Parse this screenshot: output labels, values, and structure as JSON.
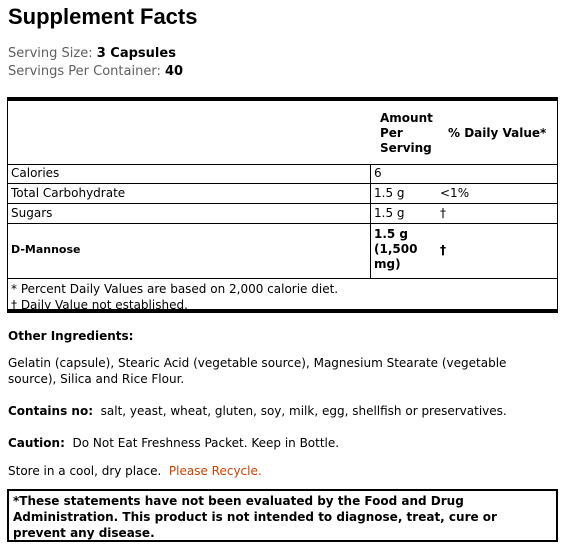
{
  "title": "Supplement Facts",
  "serving": {
    "size_label": "Serving Size:",
    "size_value": "3 Capsules",
    "per_container_label": "Servings Per Container:",
    "per_container_value": "40"
  },
  "table": {
    "amount_header": "Amount Per Serving",
    "dv_header": "% Daily Value*",
    "rows": [
      {
        "name": "Calories",
        "amount": "6",
        "dv": ""
      },
      {
        "name": "Total Carbohydrate",
        "amount": "1.5 g",
        "dv": "<1%"
      },
      {
        "name": "Sugars",
        "amount": "1.5 g",
        "dv": "†"
      },
      {
        "name": "D-Mannose",
        "amount": "1.5 g (1,500 mg)",
        "dv": "†"
      }
    ],
    "footnote_1": "* Percent Daily Values are based on 2,000 calorie diet.",
    "footnote_2": "† Daily Value not established."
  },
  "other_ingredients": {
    "label": "Other Ingredients:",
    "text": "Gelatin (capsule), Stearic Acid (vegetable source), Magnesium Stearate (vegetable source), Silica and Rice Flour."
  },
  "contains_no": {
    "label": "Contains no:",
    "text": "salt, yeast, wheat, gluten, soy, milk, egg, shellfish or preservatives."
  },
  "caution": {
    "label": "Caution:",
    "text": "Do Not Eat Freshness Packet.  Keep in Bottle."
  },
  "storage": {
    "text": "Store in a cool, dry place.",
    "recycle": "Please Recycle."
  },
  "disclaimer": "*These statements have not been evaluated by the Food and Drug Administration.  This product is not intended to diagnose, treat, cure or prevent any disease.",
  "colors": {
    "recycle": "#cc4400",
    "serving_label": "#5f5f5f"
  }
}
